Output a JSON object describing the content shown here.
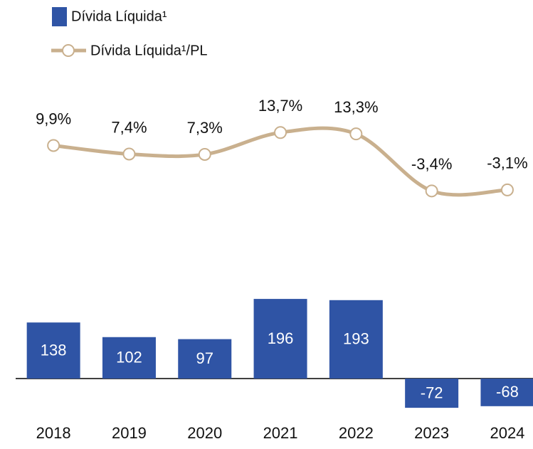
{
  "chart_data": {
    "type": "bar",
    "categories": [
      "2018",
      "2019",
      "2020",
      "2021",
      "2022",
      "2023",
      "2024"
    ],
    "series": [
      {
        "name": "Dívida Líquida¹",
        "type": "bar",
        "color": "#2f54a5",
        "values": [
          138,
          102,
          97,
          196,
          193,
          -72,
          -68
        ]
      },
      {
        "name": "Dívida Líquida¹/PL",
        "type": "line",
        "axis": "y2",
        "color": "#c9b08e",
        "values": [
          9.9,
          7.4,
          7.3,
          13.7,
          13.3,
          -3.4,
          -3.1
        ],
        "value_labels": [
          "9,9%",
          "7,4%",
          "7,3%",
          "13,7%",
          "13,3%",
          "-3,4%",
          "-3,1%"
        ]
      }
    ]
  }
}
